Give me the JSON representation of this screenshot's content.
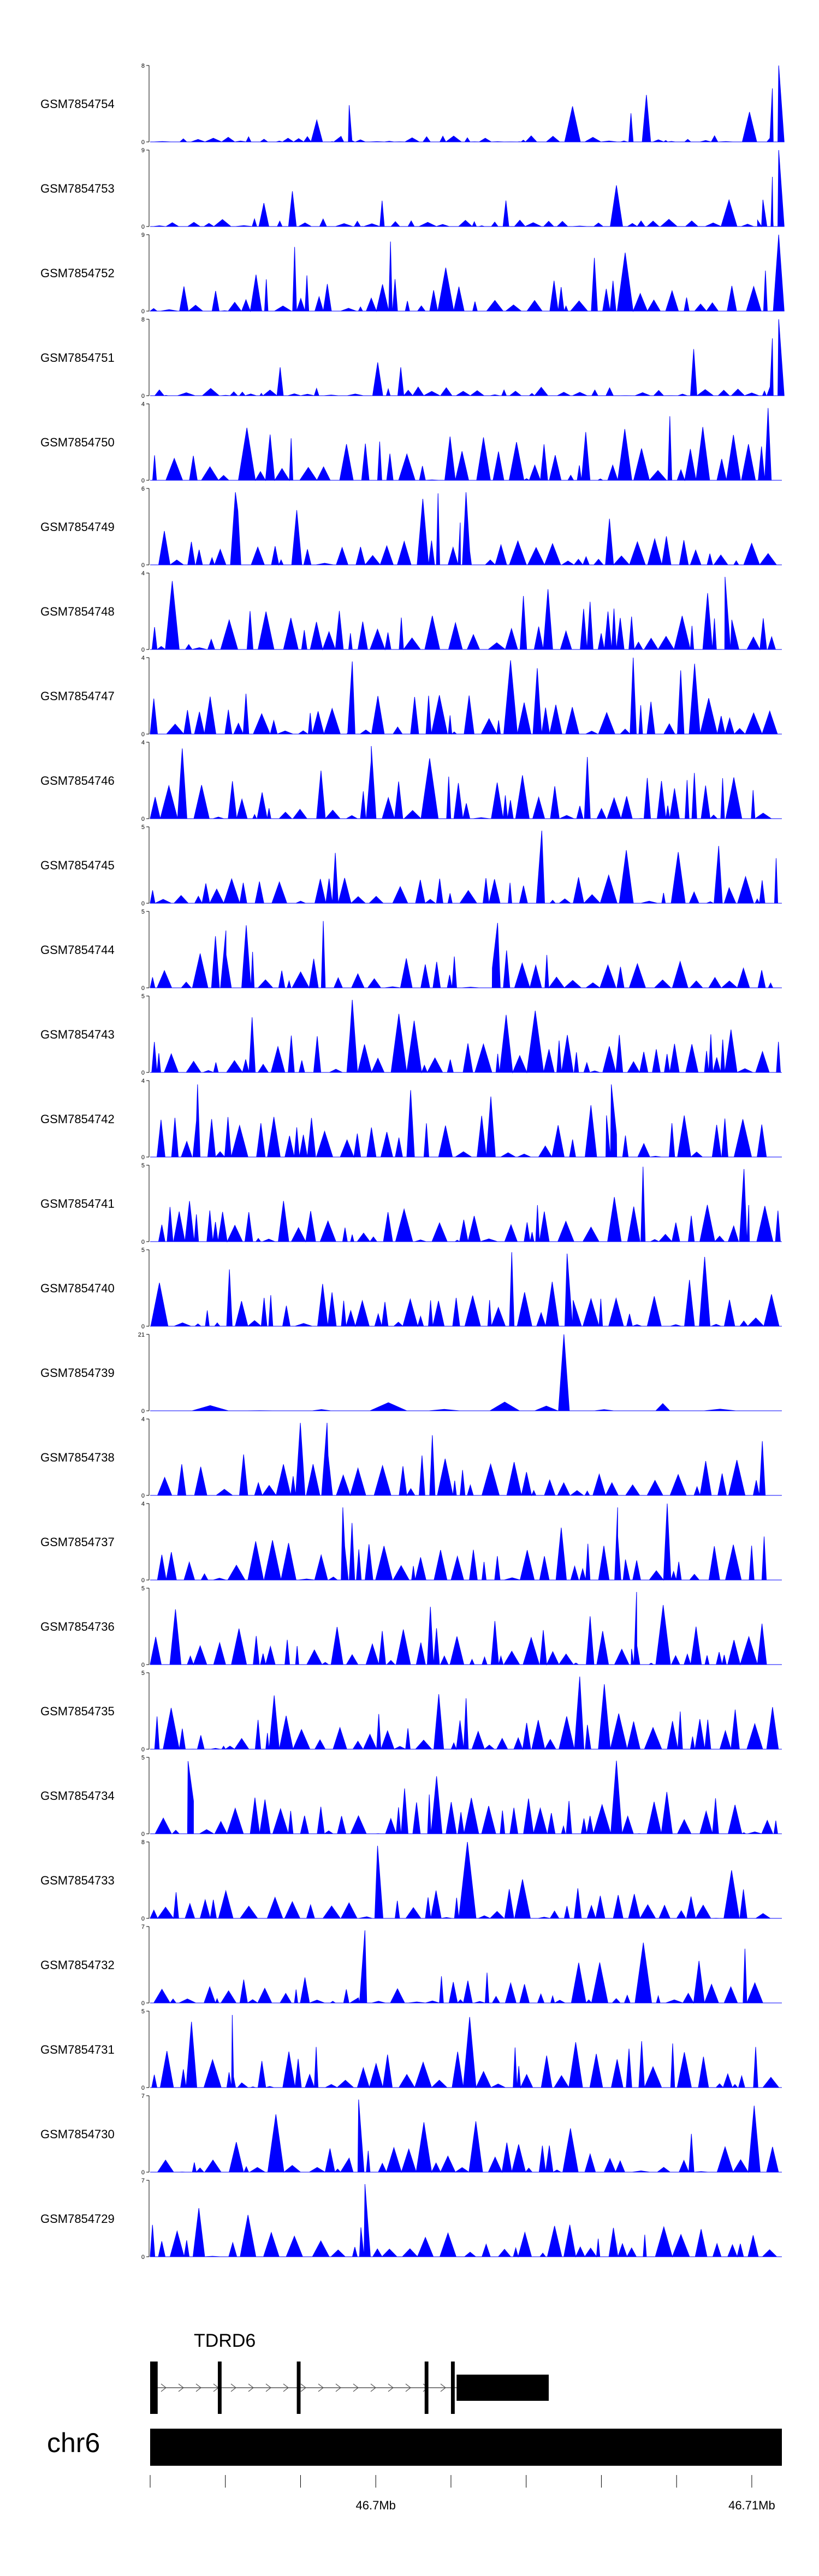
{
  "chart_data": {
    "type": "area",
    "title": "",
    "fill_color": "#0000ff",
    "axis_color": "#000000",
    "x_range_mb": [
      46.6945,
      46.7113
    ],
    "tracks": [
      {
        "name": "GSM7854754",
        "ymax": 8,
        "seed": 54,
        "base": 0.08,
        "spike_at": [
          [
            0.315,
            0.48
          ],
          [
            0.995,
            1.0
          ],
          [
            0.985,
            0.7
          ]
        ]
      },
      {
        "name": "GSM7854753",
        "ymax": 9,
        "seed": 53,
        "base": 0.1,
        "spike_at": [
          [
            0.995,
            1.0
          ],
          [
            0.985,
            0.65
          ],
          [
            0.97,
            0.35
          ]
        ]
      },
      {
        "name": "GSM7854752",
        "ymax": 9,
        "seed": 52,
        "base": 0.42,
        "spike_at": [
          [
            0.995,
            1.0
          ]
        ]
      },
      {
        "name": "GSM7854751",
        "ymax": 8,
        "seed": 51,
        "base": 0.12,
        "spike_at": [
          [
            0.995,
            1.0
          ],
          [
            0.985,
            0.75
          ]
        ]
      },
      {
        "name": "GSM7854750",
        "ymax": 4,
        "seed": 50,
        "base": 0.72,
        "spike_at": []
      },
      {
        "name": "GSM7854749",
        "ymax": 6,
        "seed": 49,
        "base": 0.35,
        "spike_at": [
          [
            0.135,
            0.95
          ],
          [
            0.5,
            0.95
          ]
        ]
      },
      {
        "name": "GSM7854748",
        "ymax": 4,
        "seed": 48,
        "base": 0.55,
        "spike_at": [
          [
            0.91,
            0.95
          ]
        ]
      },
      {
        "name": "GSM7854747",
        "ymax": 4,
        "seed": 47,
        "base": 0.55,
        "spike_at": [
          [
            0.32,
            0.95
          ]
        ]
      },
      {
        "name": "GSM7854746",
        "ymax": 4,
        "seed": 46,
        "base": 0.6,
        "spike_at": [
          [
            0.35,
            0.95
          ]
        ]
      },
      {
        "name": "GSM7854745",
        "ymax": 5,
        "seed": 45,
        "base": 0.35,
        "spike_at": [
          [
            0.62,
            0.95
          ],
          [
            0.9,
            0.75
          ]
        ]
      },
      {
        "name": "GSM7854744",
        "ymax": 5,
        "seed": 44,
        "base": 0.5,
        "spike_at": [
          [
            0.12,
            0.75
          ],
          [
            0.55,
            0.85
          ]
        ]
      },
      {
        "name": "GSM7854743",
        "ymax": 5,
        "seed": 43,
        "base": 0.5,
        "spike_at": [
          [
            0.32,
            0.95
          ]
        ]
      },
      {
        "name": "GSM7854742",
        "ymax": 4,
        "seed": 42,
        "base": 0.55,
        "spike_at": [
          [
            0.075,
            0.95
          ],
          [
            0.73,
            0.95
          ]
        ]
      },
      {
        "name": "GSM7854741",
        "ymax": 5,
        "seed": 41,
        "base": 0.5,
        "spike_at": [
          [
            0.94,
            0.95
          ]
        ]
      },
      {
        "name": "GSM7854740",
        "ymax": 5,
        "seed": 40,
        "base": 0.45,
        "spike_at": [
          [
            0.66,
            0.95
          ]
        ]
      },
      {
        "name": "GSM7854739",
        "ymax": 21,
        "seed": 39,
        "base": 0.12,
        "spike_at": [
          [
            0.655,
            1.0
          ]
        ]
      },
      {
        "name": "GSM7854738",
        "ymax": 4,
        "seed": 38,
        "base": 0.55,
        "spike_at": [
          [
            0.28,
            0.95
          ]
        ]
      },
      {
        "name": "GSM7854737",
        "ymax": 4,
        "seed": 37,
        "base": 0.6,
        "spike_at": [
          [
            0.305,
            0.95
          ],
          [
            0.74,
            0.95
          ]
        ]
      },
      {
        "name": "GSM7854736",
        "ymax": 5,
        "seed": 36,
        "base": 0.5,
        "spike_at": [
          [
            0.77,
            0.95
          ]
        ]
      },
      {
        "name": "GSM7854735",
        "ymax": 5,
        "seed": 35,
        "base": 0.55,
        "spike_at": [
          [
            0.68,
            0.95
          ]
        ]
      },
      {
        "name": "GSM7854734",
        "ymax": 5,
        "seed": 34,
        "base": 0.55,
        "spike_at": [
          [
            0.06,
            0.95
          ]
        ]
      },
      {
        "name": "GSM7854733",
        "ymax": 8,
        "seed": 33,
        "base": 0.4,
        "spike_at": [
          [
            0.36,
            0.95
          ]
        ]
      },
      {
        "name": "GSM7854732",
        "ymax": 7,
        "seed": 32,
        "base": 0.4,
        "spike_at": [
          [
            0.34,
            0.95
          ]
        ]
      },
      {
        "name": "GSM7854731",
        "ymax": 5,
        "seed": 31,
        "base": 0.6,
        "spike_at": [
          [
            0.13,
            0.95
          ]
        ]
      },
      {
        "name": "GSM7854730",
        "ymax": 7,
        "seed": 30,
        "base": 0.4,
        "spike_at": [
          [
            0.33,
            0.95
          ]
        ]
      },
      {
        "name": "GSM7854729",
        "ymax": 7,
        "seed": 29,
        "base": 0.45,
        "spike_at": [
          [
            0.34,
            0.95
          ]
        ]
      }
    ],
    "gene": {
      "name": "TDRD6",
      "exons_mb": [
        [
          46.6945,
          46.6947
        ],
        [
          46.6963,
          46.6964
        ],
        [
          46.6984,
          46.6985
        ],
        [
          46.7018,
          46.7019
        ],
        [
          46.7025,
          46.7026
        ],
        [
          46.70265,
          46.7051
        ]
      ]
    },
    "chromosome": {
      "label": "chr6",
      "ticks_mb": [
        46.6945,
        46.6965,
        46.6985,
        46.7005,
        46.7025,
        46.7045,
        46.7065,
        46.7085,
        46.7105
      ],
      "labeled_ticks": [
        {
          "value": 46.7005,
          "label": "46.7Mb"
        },
        {
          "value": 46.7105,
          "label": "46.71Mb"
        }
      ]
    }
  }
}
